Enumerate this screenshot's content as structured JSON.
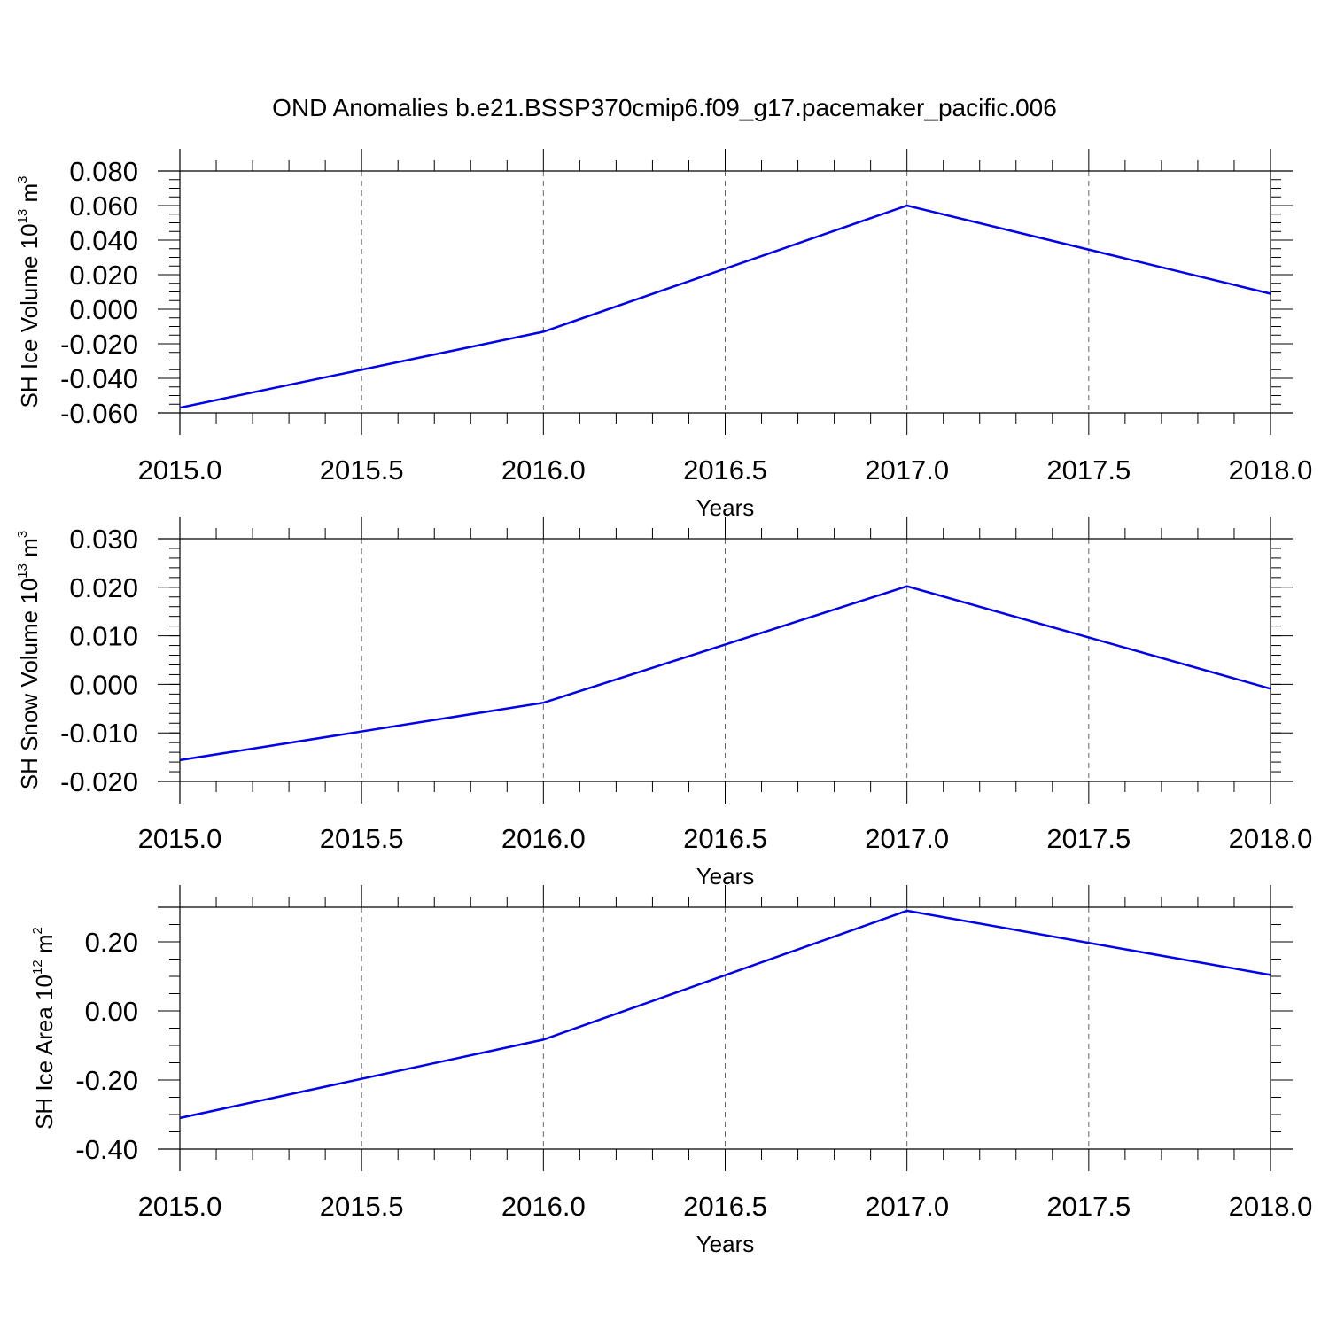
{
  "figure": {
    "title": "OND Anomalies b.e21.BSSP370cmip6.f09_g17.pacemaker_pacific.006"
  },
  "chart_data": [
    {
      "type": "line",
      "xlabel": "Years",
      "ylabel": {
        "text": "SH Ice Volume 10",
        "exp": "13",
        "unit": " m",
        "unit_exp": "3"
      },
      "xlim": [
        2015.0,
        2018.0
      ],
      "ylim": [
        -0.06,
        0.08
      ],
      "xticks": [
        2015.0,
        2015.5,
        2016.0,
        2016.5,
        2017.0,
        2017.5,
        2018.0
      ],
      "xtick_labels": [
        "2015.0",
        "2015.5",
        "2016.0",
        "2016.5",
        "2017.0",
        "2017.5",
        "2018.0"
      ],
      "yticks": [
        -0.06,
        -0.04,
        -0.02,
        0.0,
        0.02,
        0.04,
        0.06,
        0.08
      ],
      "ytick_labels": [
        "-0.060",
        "-0.040",
        "-0.020",
        "0.000",
        "0.020",
        "0.040",
        "0.060",
        "0.080"
      ],
      "grid": "vertical dashed at major x ticks",
      "color": "#0000ee",
      "series": [
        {
          "x": [
            2015,
            2016,
            2017,
            2018
          ],
          "values": [
            -0.057,
            -0.013,
            0.06,
            0.009
          ]
        }
      ]
    },
    {
      "type": "line",
      "xlabel": "Years",
      "ylabel": {
        "text": "SH Snow Volume 10",
        "exp": "13",
        "unit": " m",
        "unit_exp": "3"
      },
      "xlim": [
        2015.0,
        2018.0
      ],
      "ylim": [
        -0.02,
        0.03
      ],
      "xticks": [
        2015.0,
        2015.5,
        2016.0,
        2016.5,
        2017.0,
        2017.5,
        2018.0
      ],
      "xtick_labels": [
        "2015.0",
        "2015.5",
        "2016.0",
        "2016.5",
        "2017.0",
        "2017.5",
        "2018.0"
      ],
      "yticks": [
        -0.02,
        -0.01,
        0.0,
        0.01,
        0.02,
        0.03
      ],
      "ytick_labels": [
        "-0.020",
        "-0.010",
        "0.000",
        "0.010",
        "0.020",
        "0.030"
      ],
      "grid": "vertical dashed at major x ticks",
      "color": "#0000ee",
      "series": [
        {
          "x": [
            2015,
            2016,
            2017,
            2018
          ],
          "values": [
            -0.0156,
            -0.0038,
            0.0202,
            -0.0009
          ]
        }
      ]
    },
    {
      "type": "line",
      "xlabel": "Years",
      "ylabel": {
        "text": "SH Ice Area 10",
        "exp": "12",
        "unit": " m",
        "unit_exp": "2"
      },
      "xlim": [
        2015.0,
        2018.0
      ],
      "ylim": [
        -0.4,
        0.3
      ],
      "xticks": [
        2015.0,
        2015.5,
        2016.0,
        2016.5,
        2017.0,
        2017.5,
        2018.0
      ],
      "xtick_labels": [
        "2015.0",
        "2015.5",
        "2016.0",
        "2016.5",
        "2017.0",
        "2017.5",
        "2018.0"
      ],
      "yticks": [
        -0.4,
        -0.2,
        0.0,
        0.2
      ],
      "ytick_labels": [
        "-0.40",
        "-0.20",
        "0.00",
        "0.20"
      ],
      "grid": "vertical dashed at major x ticks",
      "color": "#0000ee",
      "series": [
        {
          "x": [
            2015,
            2016,
            2017,
            2018
          ],
          "values": [
            -0.31,
            -0.083,
            0.29,
            0.104
          ]
        }
      ]
    }
  ]
}
